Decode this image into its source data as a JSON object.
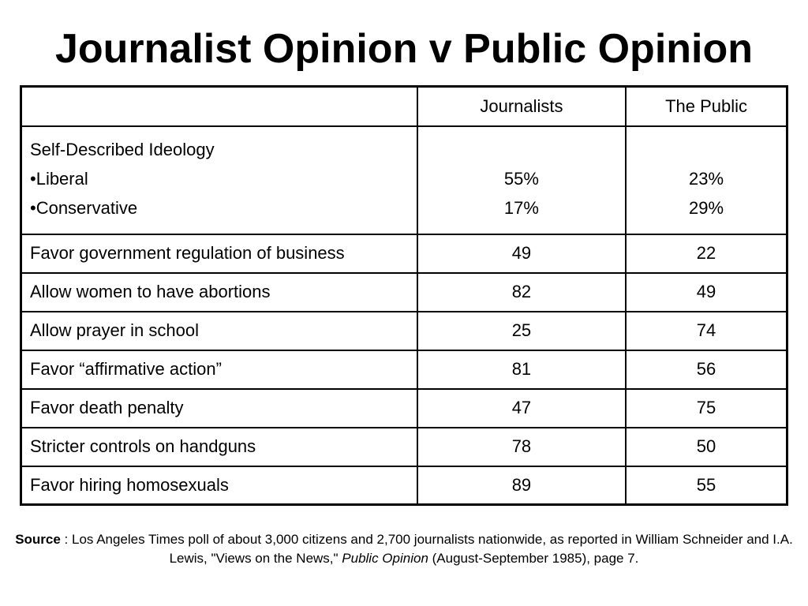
{
  "title": "Journalist Opinion v Public Opinion",
  "table": {
    "headers": [
      "",
      "Journalists",
      "The Public"
    ],
    "ideology": {
      "heading": "Self-Described Ideology",
      "items": [
        {
          "label": "•Liberal",
          "journalists": "55%",
          "public": "23%"
        },
        {
          "label": "•Conservative",
          "journalists": "17%",
          "public": "29%"
        }
      ]
    },
    "rows": [
      {
        "label": "Favor government regulation of business",
        "journalists": "49",
        "public": "22"
      },
      {
        "label": "Allow women to have abortions",
        "journalists": "82",
        "public": "49"
      },
      {
        "label": "Allow prayer in school",
        "journalists": "25",
        "public": "74"
      },
      {
        "label": "Favor “affirmative action”",
        "journalists": "81",
        "public": "56"
      },
      {
        "label": "Favor death penalty",
        "journalists": "47",
        "public": "75"
      },
      {
        "label": "Stricter controls on handguns",
        "journalists": "78",
        "public": "50"
      },
      {
        "label": "Favor hiring homosexuals",
        "journalists": "89",
        "public": "55"
      }
    ]
  },
  "source": {
    "label": "Source",
    "text_1": " : Los Angeles Times poll of about 3,000 citizens and 2,700 journalists nationwide, as reported in William Schneider and I.A. Lewis, \"Views on the News,\" ",
    "publication": "Public Opinion",
    "text_2": " (August-September 1985), page 7."
  }
}
